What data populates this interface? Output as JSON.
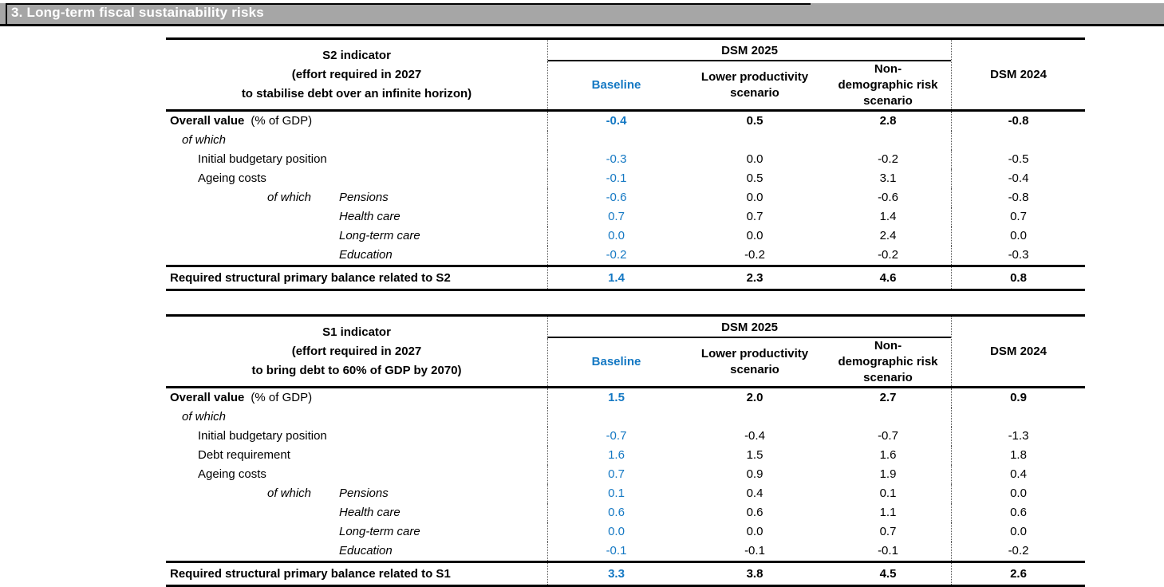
{
  "title_bar": {
    "label": "3. Long-term fiscal sustainability risks"
  },
  "colors": {
    "accent_blue": "#1478c3",
    "bar_gray": "#a6a6a6",
    "rule_black": "#000000"
  },
  "tables": {
    "s2": {
      "indicator_lines": [
        "S2 indicator",
        "(effort required in 2027",
        "to stabilise debt over an infinite horizon)"
      ],
      "group_header": "DSM 2025",
      "columns": [
        "Baseline",
        "Lower productivity scenario",
        "Non-demographic risk scenario",
        "DSM 2024"
      ],
      "rows": [
        {
          "label": "Overall value",
          "note": "(% of GDP)",
          "values": [
            "-0.4",
            "0.5",
            "2.8",
            "-0.8"
          ]
        },
        {
          "label": "of which",
          "values": [
            "",
            "",
            "",
            ""
          ]
        },
        {
          "label": "Initial budgetary position",
          "values": [
            "-0.3",
            "0.0",
            "-0.2",
            "-0.5"
          ]
        },
        {
          "label": "Ageing costs",
          "values": [
            "-0.1",
            "0.5",
            "3.1",
            "-0.4"
          ]
        },
        {
          "prefix": "of which",
          "label": "Pensions",
          "values": [
            "-0.6",
            "0.0",
            "-0.6",
            "-0.8"
          ]
        },
        {
          "label": "Health care",
          "values": [
            "0.7",
            "0.7",
            "1.4",
            "0.7"
          ]
        },
        {
          "label": "Long-term care",
          "values": [
            "0.0",
            "0.0",
            "2.4",
            "0.0"
          ]
        },
        {
          "label": "Education",
          "values": [
            "-0.2",
            "-0.2",
            "-0.2",
            "-0.3"
          ]
        }
      ],
      "footer": {
        "label": "Required structural primary balance related to S2",
        "values": [
          "1.4",
          "2.3",
          "4.6",
          "0.8"
        ]
      }
    },
    "s1": {
      "indicator_lines": [
        "S1 indicator",
        "(effort required in 2027",
        "to bring debt to 60% of GDP by 2070)"
      ],
      "group_header": "DSM 2025",
      "columns": [
        "Baseline",
        "Lower productivity scenario",
        "Non-demographic risk scenario",
        "DSM 2024"
      ],
      "rows": [
        {
          "label": "Overall value",
          "note": "(% of GDP)",
          "values": [
            "1.5",
            "2.0",
            "2.7",
            "0.9"
          ]
        },
        {
          "label": "of which",
          "values": [
            "",
            "",
            "",
            ""
          ]
        },
        {
          "label": "Initial budgetary position",
          "values": [
            "-0.7",
            "-0.4",
            "-0.7",
            "-1.3"
          ]
        },
        {
          "label": "Debt requirement",
          "values": [
            "1.6",
            "1.5",
            "1.6",
            "1.8"
          ]
        },
        {
          "label": "Ageing costs",
          "values": [
            "0.7",
            "0.9",
            "1.9",
            "0.4"
          ]
        },
        {
          "prefix": "of which",
          "label": "Pensions",
          "values": [
            "0.1",
            "0.4",
            "0.1",
            "0.0"
          ]
        },
        {
          "label": "Health care",
          "values": [
            "0.6",
            "0.6",
            "1.1",
            "0.6"
          ]
        },
        {
          "label": "Long-term care",
          "values": [
            "0.0",
            "0.0",
            "0.7",
            "0.0"
          ]
        },
        {
          "label": "Education",
          "values": [
            "-0.1",
            "-0.1",
            "-0.1",
            "-0.2"
          ]
        }
      ],
      "footer": {
        "label": "Required structural primary balance related to S1",
        "values": [
          "3.3",
          "3.8",
          "4.5",
          "2.6"
        ]
      }
    }
  }
}
